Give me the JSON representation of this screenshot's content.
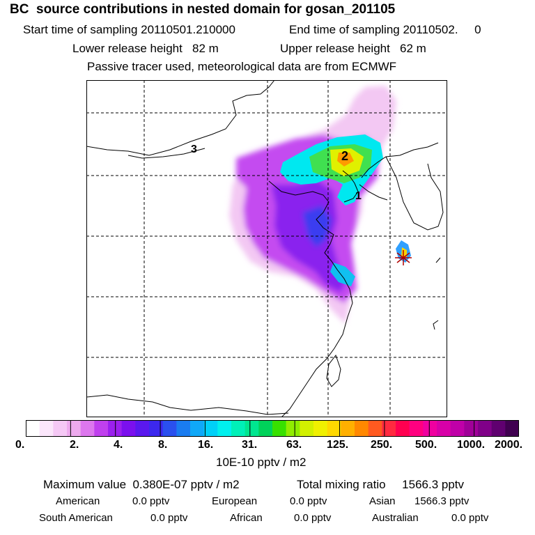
{
  "header": {
    "title": "BC  source contributions in nested domain for gosan_201105",
    "start_label": "Start time of sampling 20110501.210000",
    "end_label": "End time of sampling 20110502.     0",
    "lower_label": "Lower release height   82 m",
    "upper_label": "Upper release height   62 m",
    "note": "Passive tracer used, meteorological data are from ECMWF"
  },
  "map": {
    "markers": [
      "1",
      "2",
      "3"
    ]
  },
  "colorbar": {
    "ticks": [
      "0.",
      "2.",
      "4.",
      "8.",
      "16.",
      "31.",
      "63.",
      "125.",
      "250.",
      "500.",
      "1000.",
      "2000."
    ],
    "colors": [
      "#ffffff",
      "#fbe6fb",
      "#f5c8f5",
      "#eeaaee",
      "#dd77ee",
      "#c040ee",
      "#9b20ee",
      "#7b10ee",
      "#5a18ee",
      "#3c28ee",
      "#2a50ee",
      "#1a7cf0",
      "#10a8f8",
      "#00d0f8",
      "#00f0ee",
      "#00f0b8",
      "#00e690",
      "#00d25a",
      "#38e000",
      "#90ec00",
      "#d2f000",
      "#f0f000",
      "#ffd800",
      "#ffb000",
      "#ff8800",
      "#ff5a20",
      "#ff2a40",
      "#ff0050",
      "#ff0080",
      "#f000a0",
      "#d800a8",
      "#c000a8",
      "#a00098",
      "#800088",
      "#600070",
      "#400050"
    ],
    "unit_label": "10E-10 pptv / m2"
  },
  "stats": {
    "max_label": "Maximum value  0.380E-07 pptv / m2",
    "total_label": "Total mixing ratio     1566.3 pptv",
    "regions": [
      {
        "name": "American",
        "value": "0.0 pptv"
      },
      {
        "name": "European",
        "value": "0.0 pptv"
      },
      {
        "name": "Asian",
        "value": "1566.3 pptv"
      },
      {
        "name": "South American",
        "value": "0.0 pptv"
      },
      {
        "name": "African",
        "value": "0.0 pptv"
      },
      {
        "name": "Australian",
        "value": "0.0 pptv"
      }
    ]
  }
}
